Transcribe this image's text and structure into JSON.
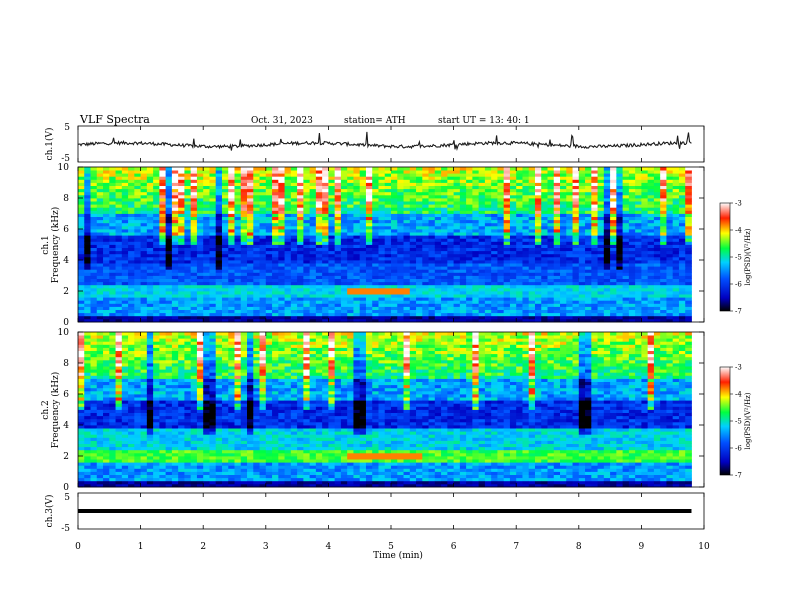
{
  "header": {
    "title": "VLF  Spectra",
    "date": "Oct. 31, 2023",
    "station": "station= ATH",
    "start": "start  UT  =   13: 40: 1"
  },
  "colors": {
    "trace": "#1a1a1a",
    "spectrogram_base": "#0a2fd0",
    "colorbar": [
      "#000000",
      "#0000ff",
      "#00c8ff",
      "#00ff40",
      "#ffff00",
      "#ff0000",
      "#ffffff"
    ]
  },
  "chart_data": [
    {
      "type": "line",
      "name": "ch1-waveform",
      "ylabel": "ch.1(V)",
      "ylim": [
        -5,
        5
      ],
      "yticks": [
        "5",
        "-5"
      ],
      "x_range_min": [
        0,
        9.8
      ],
      "description_values": "noisy signal near 0 V with spikes"
    },
    {
      "type": "heatmap",
      "name": "ch1-spectrogram",
      "ylabel": "ch.1\nFrequency (kHz)",
      "ylim": [
        0,
        10
      ],
      "yticks": [
        "0",
        "2",
        "4",
        "6",
        "8",
        "10"
      ],
      "xlim": [
        0,
        10
      ],
      "data_xmax": 9.8,
      "colorbar": {
        "label": "log(PSD)(V²/Hz)",
        "ticks": [
          "-3",
          "-4",
          "-5",
          "-6",
          "-7"
        ],
        "range": [
          -7,
          -3
        ]
      },
      "enhanced_band": {
        "freq_khz": 2.0,
        "t_start": 4.3,
        "t_end": 5.3
      }
    },
    {
      "type": "heatmap",
      "name": "ch2-spectrogram",
      "ylabel": "ch.2\nFrequency (kHz)",
      "ylim": [
        0,
        10
      ],
      "yticks": [
        "0",
        "2",
        "4",
        "6",
        "8",
        "10"
      ],
      "xlim": [
        0,
        10
      ],
      "data_xmax": 9.8,
      "colorbar": {
        "label": "log(PSD)(V²/Hz)",
        "ticks": [
          "-3",
          "-4",
          "-5",
          "-6",
          "-7"
        ],
        "range": [
          -7,
          -3
        ]
      },
      "enhanced_band": {
        "freq_khz": 2.0,
        "t_start": 4.3,
        "t_end": 5.4
      }
    },
    {
      "type": "line",
      "name": "ch3-waveform",
      "ylabel": "ch.3(V)",
      "ylim": [
        -5,
        5
      ],
      "yticks": [
        "5",
        "-5"
      ],
      "constant_value": 0,
      "x_range_min": [
        0,
        9.8
      ]
    }
  ],
  "xaxis": {
    "label": "Time  (min)",
    "ticks": [
      "0",
      "1",
      "2",
      "3",
      "4",
      "5",
      "6",
      "7",
      "8",
      "9",
      "10"
    ],
    "range": [
      0,
      10
    ]
  }
}
